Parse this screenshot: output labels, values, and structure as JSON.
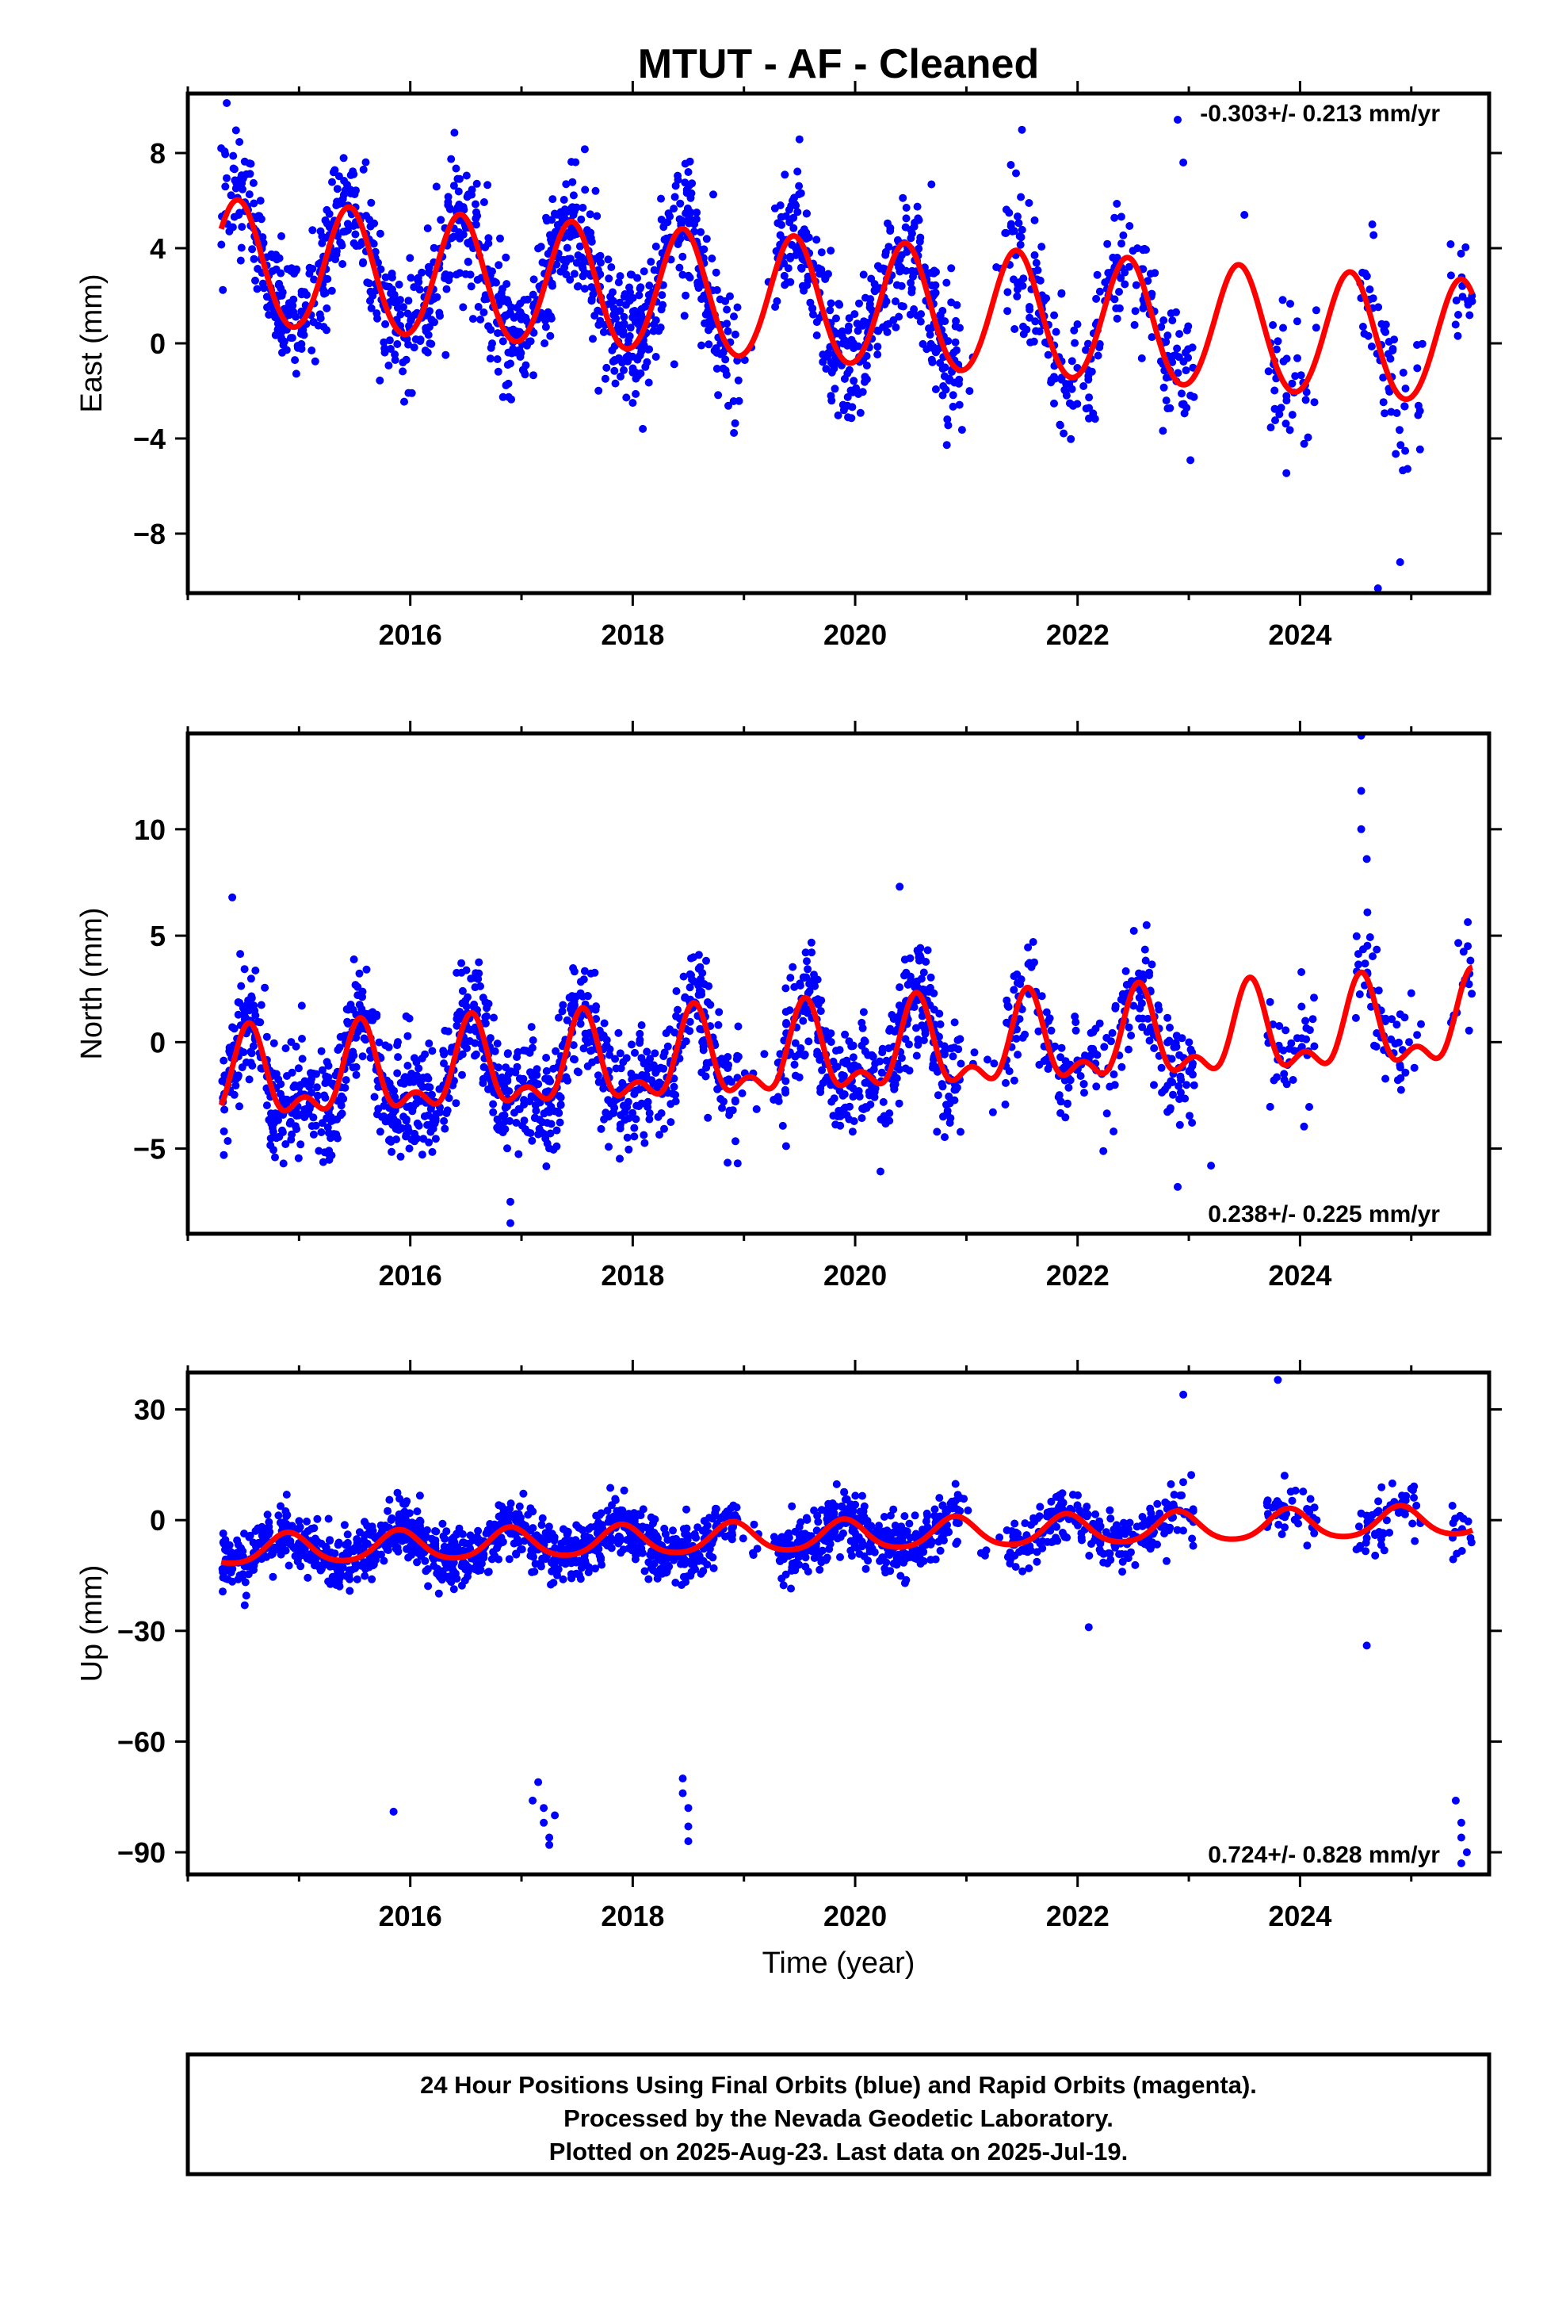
{
  "title": "MTUT  - AF - Cleaned",
  "xlabel": "Time (year)",
  "footer": [
    "24 Hour Positions Using Final Orbits (blue) and Rapid Orbits (magenta).",
    "Processed by the Nevada Geodetic Laboratory.",
    "Plotted on 2025-Aug-23. Last data on 2025-Jul-19."
  ],
  "colors": {
    "points": "#0000ff",
    "model": "#ff0000",
    "frame": "#000000"
  },
  "chart_data": [
    {
      "type": "scatter",
      "name": "east",
      "ylabel": "East (mm)",
      "rate_text": "-0.303+/- 0.213 mm/yr",
      "rate_position": "top-right",
      "xlim": [
        2014.0,
        2025.7
      ],
      "ylim": [
        -10.5,
        10.5
      ],
      "xticks": [
        2016,
        2018,
        2020,
        2022,
        2024
      ],
      "yticks": [
        8,
        4,
        0,
        -4,
        -8
      ],
      "ytick_labels": [
        "8",
        "4",
        "0",
        "−4",
        "−8"
      ],
      "grid": false,
      "model": {
        "offset": 1.6,
        "trend": -0.303,
        "annual_amp": 2.6,
        "semiannual_amp": 0.15,
        "annual_phase_year": 2015.45
      },
      "scatter_sd": 1.4,
      "outliers": [
        [
          2014.35,
          10.1
        ],
        [
          2014.3,
          8.2
        ],
        [
          2022.9,
          9.4
        ],
        [
          2022.95,
          7.6
        ],
        [
          2024.7,
          -10.3
        ],
        [
          2024.9,
          -9.2
        ],
        [
          2018.5,
          7.2
        ],
        [
          2021.4,
          7.5
        ],
        [
          2023.5,
          5.4
        ],
        [
          2024.65,
          5.0
        ]
      ]
    },
    {
      "type": "scatter",
      "name": "north",
      "ylabel": "North (mm)",
      "rate_text": "0.238+/- 0.225 mm/yr",
      "rate_position": "bottom-right",
      "xlim": [
        2014.0,
        2025.7
      ],
      "ylim": [
        -9.0,
        14.5
      ],
      "xticks": [
        2016,
        2018,
        2020,
        2022,
        2024
      ],
      "yticks": [
        10,
        5,
        0,
        -5
      ],
      "ytick_labels": [
        "10",
        "5",
        "0",
        "−5"
      ],
      "grid": false,
      "model": {
        "offset": -0.6,
        "trend": 0.238,
        "annual_amp": 1.8,
        "semiannual_amp": 1.0,
        "annual_phase_year": 2015.55
      },
      "scatter_sd": 1.3,
      "outliers": [
        [
          2024.55,
          14.4
        ],
        [
          2024.55,
          11.8
        ],
        [
          2024.55,
          10.0
        ],
        [
          2024.6,
          8.6
        ],
        [
          2016.9,
          -8.5
        ],
        [
          2016.9,
          -7.5
        ],
        [
          2022.9,
          -6.8
        ],
        [
          2023.2,
          -5.8
        ],
        [
          2020.4,
          7.3
        ],
        [
          2014.4,
          6.8
        ]
      ]
    },
    {
      "type": "scatter",
      "name": "up",
      "ylabel": "Up (mm)",
      "rate_text": "0.724+/- 0.828 mm/yr",
      "rate_position": "bottom-right",
      "xlim": [
        2014.0,
        2025.7
      ],
      "ylim": [
        -96,
        40
      ],
      "xticks": [
        2016,
        2018,
        2020,
        2022,
        2024
      ],
      "yticks": [
        30,
        0,
        -30,
        -60,
        -90
      ],
      "ytick_labels": [
        "30",
        "0",
        "−30",
        "−60",
        "−90"
      ],
      "grid": false,
      "model": {
        "offset": -4.2,
        "trend": 0.724,
        "annual_amp": 4.0,
        "semiannual_amp": 0.6,
        "annual_phase_year": 2014.9
      },
      "scatter_sd": 4.0,
      "outliers": [
        [
          2015.85,
          -79
        ],
        [
          2017.1,
          -76
        ],
        [
          2017.15,
          -71
        ],
        [
          2017.2,
          -78
        ],
        [
          2017.2,
          -82
        ],
        [
          2017.25,
          -86
        ],
        [
          2017.25,
          -88
        ],
        [
          2017.3,
          -80
        ],
        [
          2018.45,
          -70
        ],
        [
          2018.45,
          -74
        ],
        [
          2018.5,
          -78
        ],
        [
          2018.5,
          -83
        ],
        [
          2018.5,
          -87
        ],
        [
          2025.4,
          -76
        ],
        [
          2025.45,
          -82
        ],
        [
          2025.45,
          -86
        ],
        [
          2025.5,
          -90
        ],
        [
          2025.45,
          -93
        ],
        [
          2023.8,
          38
        ],
        [
          2022.95,
          34
        ],
        [
          2024.6,
          -34
        ],
        [
          2022.1,
          -29
        ]
      ]
    }
  ]
}
